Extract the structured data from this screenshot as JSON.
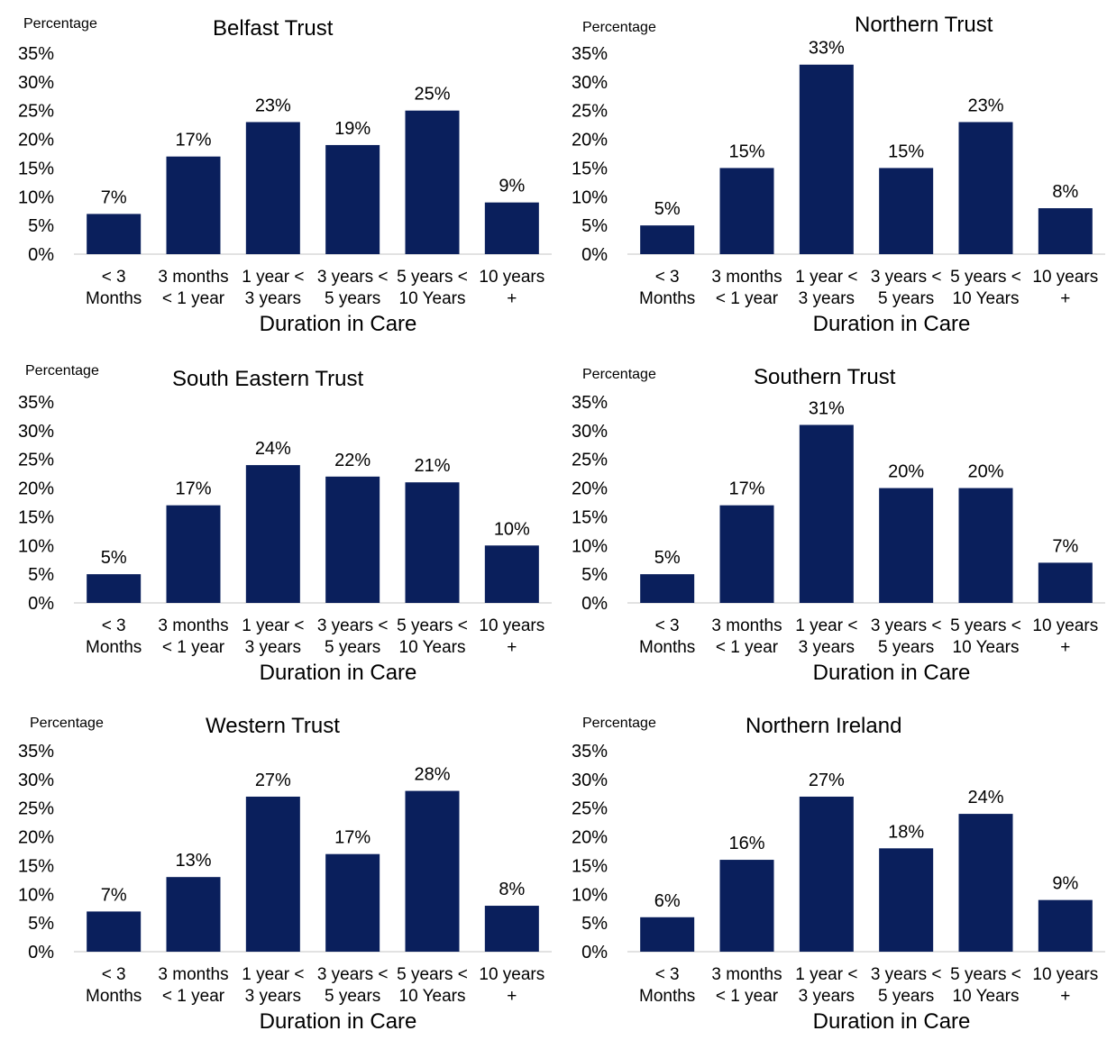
{
  "chart_data": [
    {
      "type": "bar",
      "title": "Belfast Trust",
      "ylabel": "Percentage",
      "xlabel": "Duration in Care",
      "categories": [
        [
          "< 3",
          "Months"
        ],
        [
          "3 months",
          "< 1 year"
        ],
        [
          "1 year <",
          "3 years"
        ],
        [
          "3 years <",
          "5 years"
        ],
        [
          "5 years <",
          "10 Years"
        ],
        [
          "10 years",
          "+"
        ]
      ],
      "values": [
        7,
        17,
        23,
        19,
        25,
        9
      ],
      "data_labels": [
        "7%",
        "17%",
        "23%",
        "19%",
        "25%",
        "9%"
      ],
      "yticks": [
        "0%",
        "5%",
        "10%",
        "15%",
        "20%",
        "25%",
        "30%",
        "35%"
      ],
      "ylim": [
        0,
        35
      ],
      "grid": false
    },
    {
      "type": "bar",
      "title": "Northern Trust",
      "ylabel": "Percentage",
      "xlabel": "Duration in Care",
      "categories": [
        [
          "< 3",
          "Months"
        ],
        [
          "3 months",
          "< 1 year"
        ],
        [
          "1 year <",
          "3 years"
        ],
        [
          "3 years <",
          "5 years"
        ],
        [
          "5 years <",
          "10 Years"
        ],
        [
          "10 years",
          "+"
        ]
      ],
      "values": [
        5,
        15,
        33,
        15,
        23,
        8
      ],
      "data_labels": [
        "5%",
        "15%",
        "33%",
        "15%",
        "23%",
        "8%"
      ],
      "yticks": [
        "0%",
        "5%",
        "10%",
        "15%",
        "20%",
        "25%",
        "30%",
        "35%"
      ],
      "ylim": [
        0,
        35
      ],
      "grid": false
    },
    {
      "type": "bar",
      "title": "South Eastern Trust",
      "ylabel": "Percentage",
      "xlabel": "Duration in Care",
      "categories": [
        [
          "< 3",
          "Months"
        ],
        [
          "3 months",
          "< 1 year"
        ],
        [
          "1 year <",
          "3 years"
        ],
        [
          "3 years <",
          "5 years"
        ],
        [
          "5 years <",
          "10 Years"
        ],
        [
          "10 years",
          "+"
        ]
      ],
      "values": [
        5,
        17,
        24,
        22,
        21,
        10
      ],
      "data_labels": [
        "5%",
        "17%",
        "24%",
        "22%",
        "21%",
        "10%"
      ],
      "yticks": [
        "0%",
        "5%",
        "10%",
        "15%",
        "20%",
        "25%",
        "30%",
        "35%"
      ],
      "ylim": [
        0,
        35
      ],
      "grid": false
    },
    {
      "type": "bar",
      "title": "Southern Trust",
      "ylabel": "Percentage",
      "xlabel": "Duration in Care",
      "categories": [
        [
          "< 3",
          "Months"
        ],
        [
          "3 months",
          "< 1 year"
        ],
        [
          "1 year <",
          "3 years"
        ],
        [
          "3 years <",
          "5 years"
        ],
        [
          "5 years <",
          "10 Years"
        ],
        [
          "10 years",
          "+"
        ]
      ],
      "values": [
        5,
        17,
        31,
        20,
        20,
        7
      ],
      "data_labels": [
        "5%",
        "17%",
        "31%",
        "20%",
        "20%",
        "7%"
      ],
      "yticks": [
        "0%",
        "5%",
        "10%",
        "15%",
        "20%",
        "25%",
        "30%",
        "35%"
      ],
      "ylim": [
        0,
        35
      ],
      "grid": false
    },
    {
      "type": "bar",
      "title": "Western Trust",
      "ylabel": "Percentage",
      "xlabel": "Duration in Care",
      "categories": [
        [
          "< 3",
          "Months"
        ],
        [
          "3 months",
          "< 1 year"
        ],
        [
          "1 year <",
          "3 years"
        ],
        [
          "3 years <",
          "5 years"
        ],
        [
          "5 years <",
          "10 Years"
        ],
        [
          "10 years",
          "+"
        ]
      ],
      "values": [
        7,
        13,
        27,
        17,
        28,
        8
      ],
      "data_labels": [
        "7%",
        "13%",
        "27%",
        "17%",
        "28%",
        "8%"
      ],
      "yticks": [
        "0%",
        "5%",
        "10%",
        "15%",
        "20%",
        "25%",
        "30%",
        "35%"
      ],
      "ylim": [
        0,
        35
      ],
      "grid": false
    },
    {
      "type": "bar",
      "title": "Northern Ireland",
      "ylabel": "Percentage",
      "xlabel": "Duration in Care",
      "categories": [
        [
          "< 3",
          "Months"
        ],
        [
          "3 months",
          "< 1 year"
        ],
        [
          "1 year <",
          "3 years"
        ],
        [
          "3 years <",
          "5 years"
        ],
        [
          "5 years <",
          "10 Years"
        ],
        [
          "10 years",
          "+"
        ]
      ],
      "values": [
        6,
        16,
        27,
        18,
        24,
        9
      ],
      "data_labels": [
        "6%",
        "16%",
        "27%",
        "18%",
        "24%",
        "9%"
      ],
      "yticks": [
        "0%",
        "5%",
        "10%",
        "15%",
        "20%",
        "25%",
        "30%",
        "35%"
      ],
      "ylim": [
        0,
        35
      ],
      "grid": false
    }
  ],
  "colors": {
    "bar": "#0a1f5c",
    "axis": "#d9d9d9"
  }
}
